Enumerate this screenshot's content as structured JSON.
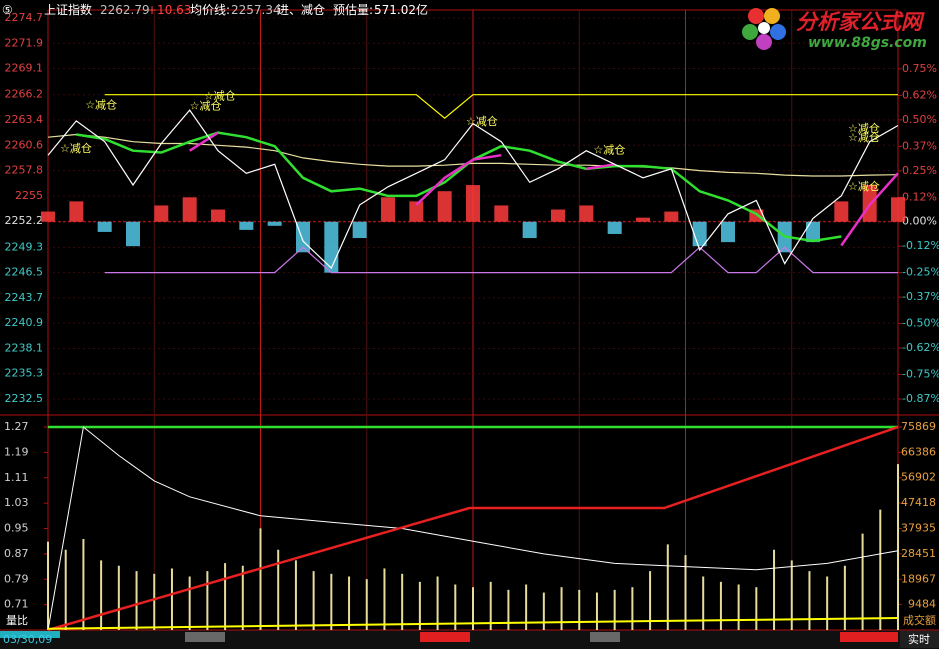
{
  "header": {
    "badge": "⑤",
    "name": "上证指数",
    "price": "2262.79",
    "change": "+10.63",
    "avg_label": "均价线:",
    "avg": "2257.34",
    "signal": "进、减仓",
    "est_label": "预估量:",
    "est": "571.02亿"
  },
  "logo": {
    "title": "分析家公式网",
    "url": "www.88gs.com"
  },
  "footer": {
    "time": "03/30,09",
    "mode": "实时"
  },
  "chart_data": [
    {
      "type": "line",
      "xlim": [
        0,
        240
      ],
      "ylim": [
        2232.5,
        2274.7
      ],
      "yticks": [
        2274.7,
        2271.9,
        2269.1,
        2266.2,
        2263.4,
        2260.6,
        2257.8,
        2255.0,
        2252.2,
        2249.3,
        2246.5,
        2243.7,
        2240.9,
        2238.1,
        2235.3,
        2232.5
      ],
      "y2lim": [
        -0.87,
        1.0
      ],
      "y2ticks": [
        {
          "value": 0.75,
          "label": "0.75%"
        },
        {
          "value": 0.62,
          "label": "0.62%"
        },
        {
          "value": 0.5,
          "label": "0.50%"
        },
        {
          "value": 0.37,
          "label": "0.37%"
        },
        {
          "value": 0.25,
          "label": "0.25%"
        },
        {
          "value": 0.12,
          "label": "0.12%"
        },
        {
          "value": 0,
          "label": "0.00%"
        },
        {
          "value": -0.12,
          "label": "-0.12%"
        },
        {
          "value": -0.25,
          "label": "-0.25%"
        },
        {
          "value": -0.37,
          "label": "-0.37%"
        },
        {
          "value": -0.5,
          "label": "-0.50%"
        },
        {
          "value": -0.62,
          "label": "-0.62%"
        },
        {
          "value": -0.75,
          "label": "-0.75%"
        },
        {
          "value": -0.87,
          "label": "-0.87%"
        }
      ],
      "x": [
        0,
        8,
        16,
        24,
        32,
        40,
        48,
        56,
        64,
        72,
        80,
        88,
        96,
        104,
        112,
        120,
        128,
        136,
        144,
        152,
        160,
        168,
        176,
        184,
        192,
        200,
        208,
        216,
        224,
        232,
        240
      ],
      "series": [
        {
          "kind": "bar",
          "axis": "y2",
          "color": "#ff3c3c",
          "negative_color": "#54c8e8",
          "values": [
            0.05,
            0.1,
            -0.05,
            -0.12,
            0.08,
            0.12,
            0.06,
            -0.04,
            -0.02,
            -0.15,
            -0.25,
            -0.08,
            0.12,
            0.1,
            0.15,
            0.18,
            0.08,
            -0.08,
            0.06,
            0.08,
            -0.06,
            0.02,
            0.05,
            -0.12,
            -0.1,
            0.06,
            -0.15,
            -0.1,
            0.1,
            0.18,
            0.12
          ]
        },
        {
          "kind": "line",
          "color": "#ffff00",
          "values": [
            null,
            null,
            2266.2,
            2266.2,
            2266.2,
            2266.2,
            2266.2,
            2266.2,
            2266.2,
            2266.2,
            2266.2,
            2266.2,
            2266.2,
            2266.2,
            2263.6,
            2266.2,
            2266.2,
            2266.2,
            2266.2,
            2266.2,
            2266.2,
            2266.2,
            2266.2,
            2266.2,
            2266.2,
            2266.2,
            2266.2,
            2266.2,
            2266.2,
            2266.2,
            2266.2
          ]
        },
        {
          "kind": "line",
          "color": "#c878e8",
          "values": [
            null,
            null,
            2246.5,
            2246.5,
            2246.5,
            2246.5,
            2246.5,
            2246.5,
            2246.5,
            2249.3,
            2246.5,
            2246.5,
            2246.5,
            2246.5,
            2246.5,
            2246.5,
            2246.5,
            2246.5,
            2246.5,
            2246.5,
            2246.5,
            2246.5,
            2246.5,
            2249.3,
            2246.5,
            2246.5,
            2249.3,
            2246.5,
            2246.5,
            2246.5,
            2246.5
          ]
        },
        {
          "kind": "line",
          "color": "#e8e0a0",
          "values": [
            2261.5,
            2261.8,
            2261.5,
            2261.0,
            2260.8,
            2260.8,
            2260.6,
            2260.4,
            2260.0,
            2259.2,
            2258.8,
            2258.5,
            2258.3,
            2258.3,
            2258.4,
            2258.6,
            2258.6,
            2258.5,
            2258.4,
            2258.4,
            2258.3,
            2258.2,
            2258.1,
            2257.8,
            2257.6,
            2257.5,
            2257.3,
            2257.2,
            2257.2,
            2257.3,
            2257.34
          ]
        },
        {
          "kind": "line",
          "color": "#30e030",
          "width": 2.5,
          "values": [
            null,
            2261.8,
            2261.3,
            2260.0,
            2259.8,
            2261.0,
            2262.0,
            2261.5,
            2260.5,
            2257.0,
            2255.5,
            2255.8,
            2255.0,
            2255.0,
            2256.5,
            2259.0,
            2260.5,
            2260.0,
            2258.8,
            2258.0,
            2258.3,
            2258.3,
            2258.0,
            2255.5,
            2254.5,
            2253.0,
            2250.5,
            2250.0,
            2250.5,
            null,
            null
          ]
        },
        {
          "kind": "line",
          "color": "#e830c8",
          "width": 2.5,
          "values": [
            null,
            null,
            null,
            null,
            null,
            2260.0,
            2262.0,
            null,
            null,
            null,
            null,
            null,
            null,
            2254.0,
            2257.0,
            2259.0,
            2259.5,
            null,
            null,
            2258.0,
            2258.5,
            null,
            null,
            null,
            null,
            null,
            null,
            null,
            2249.5,
            2254.0,
            2257.5
          ]
        },
        {
          "kind": "line",
          "color": "#ffffff",
          "values": [
            2259.5,
            2263.3,
            2261.0,
            2256.2,
            2260.8,
            2264.5,
            2260.0,
            2257.5,
            2258.5,
            2250.0,
            2247.0,
            2254.0,
            2256.0,
            2257.5,
            2259.0,
            2263.0,
            2261.0,
            2256.5,
            2258.0,
            2260.0,
            2258.5,
            2257.0,
            2258.0,
            2249.0,
            2253.0,
            2254.5,
            2247.5,
            2252.5,
            2255.0,
            2261.0,
            2262.79
          ]
        }
      ],
      "annotations": [
        {
          "text": "☆减仓",
          "x": 3.4,
          "y": 2260.2
        },
        {
          "text": "☆减仓",
          "x": 10.5,
          "y": 2265.0
        },
        {
          "text": "☆减仓",
          "x": 40,
          "y": 2264.9
        },
        {
          "text": "☆减仓",
          "x": 44,
          "y": 2266.0
        },
        {
          "text": "☆减仓",
          "x": 118,
          "y": 2263.2
        },
        {
          "text": "☆减仓",
          "x": 154,
          "y": 2260.0
        },
        {
          "text": "☆减仓",
          "x": 230,
          "y": 2256.0
        },
        {
          "text": "☆减仓",
          "x": 238,
          "y": 2261.4
        },
        {
          "text": "☆减仓",
          "x": 240,
          "y": 2262.4
        }
      ]
    },
    {
      "type": "bar",
      "xlim": [
        0,
        240
      ],
      "y_label": "量比",
      "ylim": [
        0.63,
        1.27
      ],
      "yticks": [
        1.27,
        1.19,
        1.11,
        1.03,
        0.95,
        0.87,
        0.79,
        0.71
      ],
      "y2_label": "成交额",
      "y2lim": [
        0,
        75869
      ],
      "y2ticks": [
        75869,
        66386,
        56902,
        47418,
        37935,
        28451,
        18967,
        9484
      ],
      "x": [
        0,
        5,
        10,
        15,
        20,
        25,
        30,
        35,
        40,
        45,
        50,
        55,
        60,
        65,
        70,
        75,
        80,
        85,
        90,
        95,
        100,
        105,
        110,
        115,
        120,
        125,
        130,
        135,
        140,
        145,
        150,
        155,
        160,
        165,
        170,
        175,
        180,
        185,
        190,
        195,
        200,
        205,
        210,
        215,
        220,
        225,
        230,
        235,
        240
      ],
      "values": [
        33000,
        30000,
        34000,
        26000,
        24000,
        22000,
        21000,
        23000,
        20000,
        22000,
        25000,
        24000,
        38000,
        30000,
        26000,
        22000,
        21000,
        20000,
        19000,
        23000,
        21000,
        18000,
        20000,
        17000,
        16000,
        18000,
        15000,
        17000,
        14000,
        16000,
        15000,
        14000,
        15000,
        16000,
        22000,
        32000,
        28000,
        20000,
        18000,
        17000,
        16000,
        30000,
        26000,
        22000,
        20000,
        24000,
        36000,
        45000,
        62000
      ],
      "color": "#e8dc9c",
      "series": [
        {
          "axis": "y",
          "color": "#30e030",
          "width": 2.5,
          "x": [
            0,
            240
          ],
          "values": [
            1.27,
            1.27
          ]
        },
        {
          "axis": "y",
          "color": "#ffffff",
          "width": 1,
          "x": [
            0,
            10,
            20,
            30,
            40,
            60,
            80,
            100,
            120,
            140,
            160,
            180,
            200,
            220,
            240
          ],
          "values": [
            0.63,
            1.27,
            1.18,
            1.1,
            1.05,
            0.99,
            0.97,
            0.95,
            0.91,
            0.87,
            0.84,
            0.83,
            0.82,
            0.84,
            0.88
          ]
        },
        {
          "axis": "y2",
          "color": "#e82020",
          "width": 2.5,
          "x": [
            0,
            119,
            174,
            240
          ],
          "values": [
            0,
            45600,
            45600,
            75869
          ]
        },
        {
          "axis": "y2",
          "color": "#ffff00",
          "width": 2,
          "x": [
            0,
            240
          ],
          "values": [
            500,
            4500
          ]
        }
      ]
    }
  ]
}
